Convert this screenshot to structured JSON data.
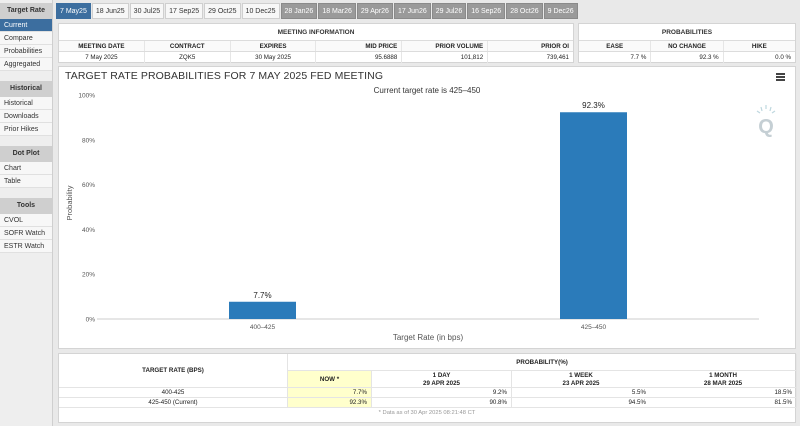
{
  "sidebar": {
    "sections": [
      {
        "title": "Target Rate",
        "items": [
          "Current",
          "Compare",
          "Probabilities",
          "Aggregated"
        ]
      },
      {
        "title": "Historical",
        "items": [
          "Historical",
          "Downloads",
          "Prior Hikes"
        ]
      },
      {
        "title": "Dot Plot",
        "items": [
          "Chart",
          "Table"
        ]
      },
      {
        "title": "Tools",
        "items": [
          "CVOL",
          "SOFR Watch",
          "ESTR Watch"
        ]
      }
    ]
  },
  "tabs": [
    "7 May25",
    "18 Jun25",
    "30 Jul25",
    "17 Sep25",
    "29 Oct25",
    "10 Dec25",
    "28 Jan26",
    "18 Mar26",
    "29 Apr26",
    "17 Jun26",
    "29 Jul26",
    "16 Sep26",
    "28 Oct26",
    "9 Dec26"
  ],
  "meeting_info": {
    "title": "MEETING INFORMATION",
    "headers": [
      "MEETING DATE",
      "CONTRACT",
      "EXPIRES",
      "MID PRICE",
      "PRIOR VOLUME",
      "PRIOR OI"
    ],
    "values": [
      "7 May 2025",
      "ZQK5",
      "30 May 2025",
      "95.6888",
      "101,812",
      "739,461"
    ]
  },
  "probabilities": {
    "title": "PROBABILITIES",
    "headers": [
      "EASE",
      "NO CHANGE",
      "HIKE"
    ],
    "values": [
      "7.7 %",
      "92.3 %",
      "0.0 %"
    ]
  },
  "chart_panel": {
    "title": "TARGET RATE PROBABILITIES FOR 7 MAY 2025 FED MEETING"
  },
  "chart_data": {
    "type": "bar",
    "title": "TARGET RATE PROBABILITIES FOR 7 MAY 2025 FED MEETING",
    "subtitle": "Current target rate is 425–450",
    "categories": [
      "400–425",
      "425–450"
    ],
    "values": [
      7.7,
      92.3
    ],
    "data_labels": [
      "7.7%",
      "92.3%"
    ],
    "xlabel": "Target Rate (in bps)",
    "ylabel": "Probability",
    "ylim": [
      0,
      100
    ],
    "yticks": [
      "0%",
      "20%",
      "40%",
      "60%",
      "80%",
      "100%"
    ],
    "bar_color": "#2b7bba",
    "grid": false
  },
  "bottom_table": {
    "headers": {
      "rate": "TARGET RATE (BPS)",
      "prob_group": "PROBABILITY(%)",
      "now": "NOW *",
      "d1": "1 DAY",
      "d1_date": "29 APR 2025",
      "w1": "1 WEEK",
      "w1_date": "23 APR 2025",
      "m1": "1 MONTH",
      "m1_date": "28 MAR 2025"
    },
    "rows": [
      {
        "rate": "400-425",
        "now": "7.7%",
        "d1": "9.2%",
        "w1": "5.5%",
        "m1": "18.5%"
      },
      {
        "rate": "425-450 (Current)",
        "now": "92.3%",
        "d1": "90.8%",
        "w1": "94.5%",
        "m1": "81.5%"
      }
    ],
    "footnote": "* Data as of 30 Apr 2025 08:21:48 CT"
  },
  "colors": {
    "accent": "#3c6e9f",
    "highlight": "#ffffcc"
  }
}
